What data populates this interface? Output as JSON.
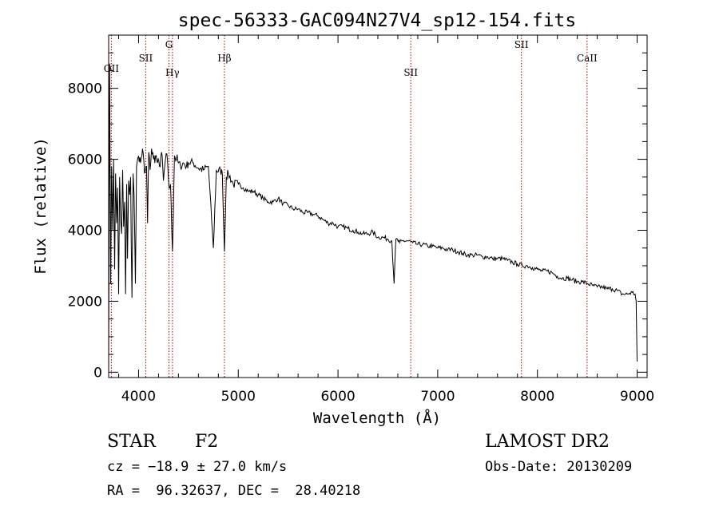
{
  "chart_data": {
    "type": "line",
    "title": "spec-56333-GAC094N27V4_sp12-154.fits",
    "xlabel": "Wavelength (Å)",
    "ylabel": "Flux (relative)",
    "xlim": [
      3700,
      9100
    ],
    "ylim": [
      -150,
      9500
    ],
    "x_ticks": [
      4000,
      5000,
      6000,
      7000,
      8000,
      9000
    ],
    "x_tick_labels": [
      "4000",
      "5000",
      "6000",
      "7000",
      "8000",
      "9000"
    ],
    "y_ticks": [
      0,
      2000,
      4000,
      6000,
      8000
    ],
    "y_tick_labels": [
      "0",
      "2000",
      "4000",
      "6000",
      "8000"
    ],
    "series": [
      {
        "name": "flux",
        "x": [
          3700,
          3710,
          3720,
          3730,
          3740,
          3750,
          3760,
          3770,
          3780,
          3790,
          3800,
          3810,
          3820,
          3830,
          3840,
          3850,
          3860,
          3870,
          3880,
          3889,
          3900,
          3910,
          3920,
          3934,
          3945,
          3955,
          3968,
          3980,
          3990,
          4000,
          4020,
          4040,
          4060,
          4080,
          4090,
          4102,
          4115,
          4130,
          4150,
          4170,
          4190,
          4210,
          4230,
          4250,
          4270,
          4290,
          4305,
          4320,
          4340,
          4360,
          4380,
          4400,
          4420,
          4450,
          4480,
          4500,
          4550,
          4600,
          4650,
          4700,
          4750,
          4780,
          4800,
          4820,
          4840,
          4861,
          4880,
          4900,
          4950,
          5000,
          5050,
          5100,
          5150,
          5200,
          5250,
          5300,
          5350,
          5400,
          5450,
          5500,
          5550,
          5600,
          5650,
          5700,
          5750,
          5800,
          5850,
          5900,
          5950,
          6000,
          6050,
          6100,
          6150,
          6200,
          6250,
          6300,
          6350,
          6400,
          6450,
          6500,
          6540,
          6563,
          6580,
          6620,
          6650,
          6700,
          6750,
          6800,
          6850,
          6900,
          6950,
          7000,
          7050,
          7100,
          7150,
          7200,
          7250,
          7300,
          7350,
          7400,
          7450,
          7500,
          7550,
          7600,
          7650,
          7700,
          7750,
          7800,
          7850,
          7900,
          7950,
          8000,
          8050,
          8100,
          8150,
          8200,
          8250,
          8300,
          8350,
          8400,
          8450,
          8500,
          8550,
          8600,
          8650,
          8700,
          8750,
          8800,
          8850,
          8900,
          8950,
          8980,
          8990,
          9000
        ],
        "y": [
          200,
          8700,
          2500,
          5800,
          4000,
          6000,
          2900,
          5600,
          4200,
          5200,
          2200,
          5500,
          4300,
          3900,
          5700,
          4100,
          4800,
          2200,
          5300,
          3200,
          5400,
          5000,
          5500,
          2100,
          5600,
          5000,
          2500,
          5800,
          6000,
          6100,
          5900,
          6300,
          5600,
          5800,
          4200,
          6200,
          5700,
          6300,
          6000,
          6100,
          5900,
          5800,
          6200,
          5400,
          6000,
          6000,
          5200,
          5300,
          3400,
          6100,
          6000,
          5900,
          5800,
          5900,
          5800,
          5900,
          5900,
          5750,
          5700,
          5800,
          3500,
          5700,
          5650,
          5700,
          5600,
          3400,
          5500,
          5600,
          5300,
          5300,
          5200,
          5100,
          5100,
          5000,
          4900,
          4800,
          4800,
          4900,
          4750,
          4700,
          4600,
          4600,
          4500,
          4500,
          4450,
          4400,
          4300,
          4200,
          4200,
          4100,
          4100,
          4050,
          4000,
          3950,
          3900,
          3900,
          3950,
          3800,
          3800,
          3750,
          3700,
          2500,
          3750,
          3650,
          3700,
          3700,
          3650,
          3600,
          3600,
          3550,
          3550,
          3500,
          3500,
          3450,
          3450,
          3400,
          3350,
          3300,
          3300,
          3300,
          3250,
          3250,
          3200,
          3200,
          3200,
          3150,
          3100,
          3050,
          3000,
          3000,
          2950,
          2900,
          2850,
          2850,
          2800,
          2700,
          2650,
          2650,
          2600,
          2550,
          2550,
          2500,
          2450,
          2400,
          2400,
          2350,
          2350,
          2300,
          2200,
          2200,
          2250,
          2200,
          2000,
          300
        ]
      }
    ],
    "lines": [
      {
        "label": "OII",
        "x": 3727
      },
      {
        "label": "SII",
        "x": 4072
      },
      {
        "label": "G",
        "x": 4305
      },
      {
        "label": "Hγ",
        "x": 4340
      },
      {
        "label": "Hβ",
        "x": 4861
      },
      {
        "label": "SII",
        "x": 6730
      },
      {
        "label": "SII",
        "x": 7840
      },
      {
        "label": "CaII",
        "x": 8498
      }
    ],
    "info": {
      "class_label": "STAR",
      "subclass": "F2",
      "survey": "LAMOST DR2",
      "redshift": "cz = −18.9 ± 27.0 km/s",
      "obs_date": "Obs-Date: 20130209",
      "coords": "RA =  96.32637, DEC =  28.40218"
    }
  }
}
